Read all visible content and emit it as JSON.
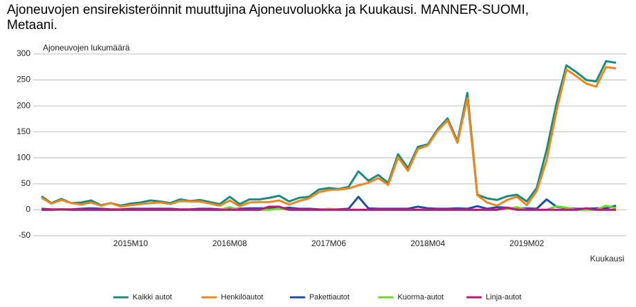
{
  "chart_data": {
    "type": "line",
    "title": "Ajoneuvojen ensirekisteröinnit muuttujina Ajoneuvoluokka ja Kuukausi. MANNER-SUOMI, Metaani.",
    "y_label": "Ajoneuvojen lukumäärä",
    "x_label": "Kuukausi",
    "categories": [
      null,
      null,
      null,
      null,
      null,
      null,
      null,
      null,
      null,
      "2015M10",
      null,
      null,
      null,
      null,
      null,
      null,
      null,
      null,
      null,
      "2016M08",
      null,
      null,
      null,
      null,
      null,
      null,
      null,
      null,
      null,
      "2017M06",
      null,
      null,
      null,
      null,
      null,
      null,
      null,
      null,
      null,
      "2018M04",
      null,
      null,
      null,
      null,
      null,
      null,
      null,
      null,
      null,
      "2019M02",
      null,
      null,
      null,
      null,
      null,
      null,
      null,
      null,
      null
    ],
    "ylim": [
      -50,
      300
    ],
    "yticks": [
      -50,
      0,
      50,
      100,
      150,
      200,
      250,
      300
    ],
    "grid": true,
    "legend": "bottom",
    "series": [
      {
        "name": "Kaikki autot",
        "color": "#1a8c7e",
        "values": [
          26,
          13,
          21,
          13,
          14,
          18,
          9,
          13,
          8,
          12,
          14,
          18,
          16,
          13,
          20,
          17,
          19,
          15,
          11,
          25,
          11,
          20,
          20,
          23,
          27,
          16,
          23,
          25,
          39,
          42,
          40,
          44,
          74,
          56,
          67,
          52,
          107,
          80,
          121,
          126,
          155,
          176,
          132,
          225,
          29,
          22,
          19,
          26,
          29,
          16,
          42,
          115,
          205,
          278,
          265,
          250,
          247,
          286,
          283
        ]
      },
      {
        "name": "Henkilöautot",
        "color": "#f08519",
        "values": [
          23,
          12,
          19,
          13,
          10,
          14,
          8,
          13,
          6,
          9,
          11,
          13,
          14,
          11,
          17,
          16,
          16,
          12,
          8,
          18,
          7,
          14,
          15,
          15,
          18,
          10,
          17,
          22,
          34,
          38,
          39,
          41,
          47,
          52,
          61,
          48,
          101,
          75,
          117,
          124,
          152,
          172,
          129,
          215,
          28,
          14,
          8,
          19,
          25,
          9,
          36,
          95,
          190,
          270,
          257,
          243,
          237,
          275,
          272
        ]
      },
      {
        "name": "Pakettiautot",
        "color": "#1a4da6",
        "values": [
          2,
          1,
          1,
          1,
          2,
          3,
          2,
          1,
          1,
          2,
          2,
          2,
          2,
          2,
          1,
          1,
          2,
          2,
          1,
          2,
          2,
          3,
          3,
          3,
          2,
          4,
          2,
          2,
          1,
          1,
          1,
          2,
          25,
          3,
          2,
          2,
          2,
          2,
          6,
          3,
          2,
          2,
          3,
          2,
          7,
          2,
          5,
          4,
          2,
          3,
          2,
          20,
          6,
          3,
          2,
          2,
          3,
          3,
          8
        ]
      },
      {
        "name": "Kuorma-autot",
        "color": "#66dd22",
        "values": [
          0,
          0,
          0,
          0,
          0,
          0,
          0,
          0,
          0,
          0,
          0,
          0,
          0,
          0,
          0,
          0,
          0,
          0,
          0,
          5,
          0,
          0,
          0,
          0,
          2,
          0,
          0,
          0,
          0,
          2,
          0,
          0,
          0,
          0,
          0,
          0,
          0,
          0,
          0,
          0,
          0,
          0,
          0,
          0,
          0,
          0,
          0,
          2,
          5,
          0,
          0,
          0,
          7,
          4,
          0,
          0,
          0,
          8,
          3
        ]
      },
      {
        "name": "Linja-autot",
        "color": "#c4137a",
        "values": [
          0,
          0,
          1,
          0,
          0,
          0,
          0,
          0,
          0,
          0,
          0,
          0,
          0,
          0,
          0,
          0,
          0,
          0,
          0,
          0,
          0,
          0,
          0,
          6,
          6,
          0,
          0,
          0,
          0,
          0,
          0,
          0,
          0,
          0,
          0,
          0,
          0,
          0,
          0,
          0,
          0,
          0,
          0,
          0,
          0,
          0,
          0,
          4,
          0,
          0,
          0,
          0,
          0,
          0,
          0,
          3,
          0,
          0,
          0
        ]
      }
    ]
  }
}
